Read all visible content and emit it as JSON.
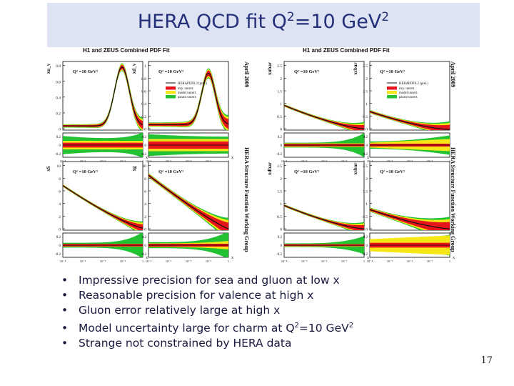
{
  "slide": {
    "title_main": "HERA QCD fit Q",
    "title_sup1": "2",
    "title_mid": "=10 GeV",
    "title_sup2": "2",
    "page_number": "17"
  },
  "figure": {
    "group_titles": [
      "H1 and ZEUS Combined PDF Fit",
      "H1 and ZEUS Combined PDF Fit"
    ],
    "side_labels": [
      "April 2009",
      "HERA Structure Function Working Group"
    ],
    "panel_scale": "Q² =10 GeV²",
    "legend": [
      "HERAPDF0.2 (prel.)",
      "exp. uncert.",
      "model uncert.",
      "param uncert."
    ],
    "colors": {
      "exp": "#e8141c",
      "model": "#f5e616",
      "param": "#22c233",
      "curve": "#111111"
    },
    "panels": [
      {
        "ylabel": "xu_v",
        "yticks": [
          "0.8",
          "0.6",
          "0.4",
          "0.2",
          "0"
        ],
        "ratio_ticks": [
          "0.2",
          "0",
          "-0.2"
        ]
      },
      {
        "ylabel": "xd_v",
        "yticks": [
          "1",
          "0.8",
          "0.6",
          "0.4",
          "0.2",
          "0"
        ],
        "ratio_ticks": [
          "0.2",
          "0",
          "-0.2"
        ]
      },
      {
        "ylabel": "xubar",
        "yticks": [
          "2.5",
          "2",
          "1.5",
          "1",
          "0.5",
          "0"
        ],
        "ratio_ticks": [
          "0.2",
          "0",
          "-0.2"
        ]
      },
      {
        "ylabel": "xcbar",
        "yticks": [
          "2.5",
          "2",
          "1.5",
          "1",
          "0.5",
          "0"
        ],
        "ratio_ticks": [
          "0.2",
          "0",
          "-0.2"
        ]
      },
      {
        "ylabel": "xS",
        "yticks": [
          "10",
          "8",
          "6",
          "4",
          "2",
          "0"
        ],
        "ratio_ticks": [
          "0.2",
          "0",
          "-0.2"
        ]
      },
      {
        "ylabel": "xg",
        "yticks": [
          "10",
          "8",
          "6",
          "4",
          "2",
          "0"
        ],
        "ratio_ticks": [
          "0.2",
          "0",
          "-0.2"
        ]
      },
      {
        "ylabel": "xdbar",
        "yticks": [
          "2.5",
          "2",
          "1.5",
          "1",
          "0.5",
          "0"
        ],
        "ratio_ticks": [
          "0.2",
          "0",
          "-0.2"
        ]
      },
      {
        "ylabel": "xsbar",
        "yticks": [
          "2.5",
          "2",
          "1.5",
          "1",
          "0.5",
          "0"
        ],
        "ratio_ticks": [
          "0.2",
          "0",
          "-0.2"
        ]
      }
    ],
    "xticks": [
      "10⁻⁴",
      "10⁻³",
      "10⁻²",
      "10⁻¹",
      "1"
    ],
    "xlabel": "x"
  },
  "bullets": [
    {
      "text": "Impressive precision for sea and gluon at low x"
    },
    {
      "text": "Reasonable precision for valence at high x"
    },
    {
      "text": "Gluon error relatively large at high x"
    },
    {
      "text": "Model uncertainty large for charm at Q",
      "sup": "2",
      "tail": "=10 GeV",
      "sup2": "2"
    },
    {
      "text": "Strange not constrained by HERA data"
    }
  ]
}
